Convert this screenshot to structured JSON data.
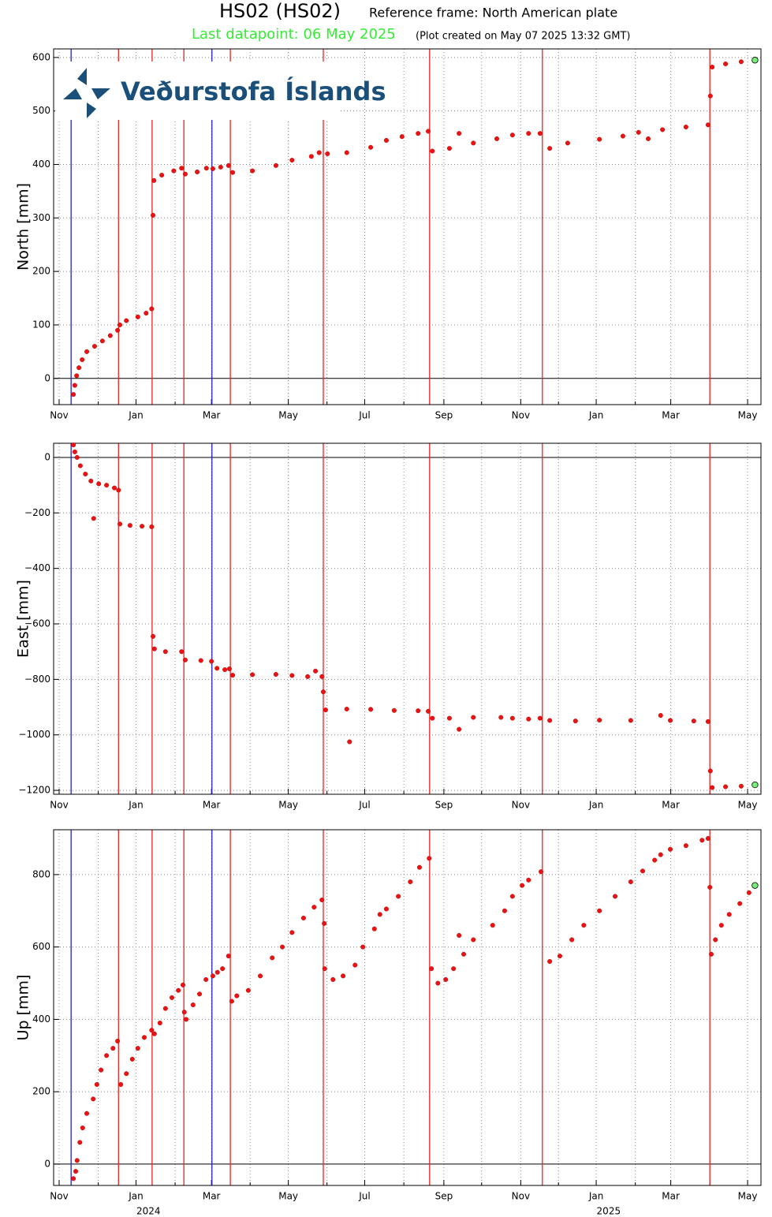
{
  "header": {
    "title": "HS02 (HS02)",
    "subtitle": "Reference frame: North American plate",
    "last_datapoint": "Last datapoint: 06 May 2025",
    "created": "(Plot created on May 07 2025 13:32 GMT)",
    "logo": "Veðurstofa Íslands"
  },
  "events": [
    {
      "x": 2023.859,
      "color": "#2222cc"
    },
    {
      "x": 2023.962,
      "color": "#ee2222"
    },
    {
      "x": 2024.035,
      "color": "#ee2222"
    },
    {
      "x": 2024.104,
      "color": "#ee2222"
    },
    {
      "x": 2024.165,
      "color": "#2222cc"
    },
    {
      "x": 2024.205,
      "color": "#ee2222"
    },
    {
      "x": 2024.407,
      "color": "#ee2222"
    },
    {
      "x": 2024.638,
      "color": "#ee2222"
    },
    {
      "x": 2024.883,
      "color": "#ee2222"
    },
    {
      "x": 2025.247,
      "color": "#ee2222"
    }
  ],
  "chart_data": [
    {
      "type": "scatter",
      "ylabel": "North [mm]",
      "color": "#ee1111",
      "last_point_color": "#77ee77",
      "grid": true,
      "xlim": [
        2023.821,
        2025.358
      ],
      "ylim": [
        -49,
        616
      ],
      "yticks": [
        0,
        100,
        200,
        300,
        400,
        500,
        600
      ],
      "xticks": [
        {
          "value": 2023.833,
          "label": "Nov"
        },
        {
          "value": 2024.0,
          "label": "Jan"
        },
        {
          "value": 2024.164,
          "label": "Mar"
        },
        {
          "value": 2024.331,
          "label": "May"
        },
        {
          "value": 2024.497,
          "label": "Jul"
        },
        {
          "value": 2024.669,
          "label": "Sep"
        },
        {
          "value": 2024.836,
          "label": "Nov"
        },
        {
          "value": 2025.0,
          "label": "Jan"
        },
        {
          "value": 2025.162,
          "label": "Mar"
        },
        {
          "value": 2025.329,
          "label": "May"
        }
      ],
      "xminorticks": [
        2023.918,
        2024.085,
        2024.248,
        2024.415,
        2024.582,
        2024.751,
        2024.918,
        2025.085,
        2025.247
      ],
      "x": [
        2023.864,
        2023.867,
        2023.871,
        2023.876,
        2023.883,
        2023.893,
        2023.91,
        2023.927,
        2023.944,
        2023.96,
        2023.965,
        2023.979,
        2024.004,
        2024.022,
        2024.034,
        2024.037,
        2024.039,
        2024.056,
        2024.082,
        2024.099,
        2024.107,
        2024.133,
        2024.153,
        2024.167,
        2024.184,
        2024.201,
        2024.21,
        2024.253,
        2024.304,
        2024.339,
        2024.381,
        2024.398,
        2024.416,
        2024.458,
        2024.51,
        2024.544,
        2024.578,
        2024.613,
        2024.635,
        2024.644,
        2024.681,
        2024.702,
        2024.733,
        2024.784,
        2024.818,
        2024.853,
        2024.878,
        2024.899,
        2024.938,
        2025.007,
        2025.058,
        2025.092,
        2025.113,
        2025.144,
        2025.195,
        2025.243,
        2025.248,
        2025.252,
        2025.281,
        2025.315,
        2025.345
      ],
      "values": [
        -30,
        -13,
        5,
        20,
        35,
        50,
        60,
        70,
        80,
        90,
        100,
        108,
        115,
        122,
        130,
        305,
        370,
        380,
        388,
        393,
        382,
        386,
        393,
        392,
        395,
        398,
        385,
        388,
        398,
        408,
        415,
        422,
        420,
        422,
        432,
        445,
        452,
        458,
        462,
        425,
        430,
        458,
        440,
        448,
        455,
        458,
        458,
        430,
        440,
        447,
        453,
        460,
        448,
        465,
        470,
        474,
        528,
        582,
        588,
        592,
        595
      ]
    },
    {
      "type": "scatter",
      "ylabel": "East [mm]",
      "color": "#ee1111",
      "last_point_color": "#77ee77",
      "grid": true,
      "xlim": [
        2023.821,
        2025.358
      ],
      "ylim": [
        -1214,
        51
      ],
      "yticks": [
        {
          "value": -1200,
          "label": "−1200"
        },
        {
          "value": -1000,
          "label": "−1000"
        },
        {
          "value": -800,
          "label": "−800"
        },
        {
          "value": -600,
          "label": "−600"
        },
        {
          "value": -400,
          "label": "−400"
        },
        {
          "value": -200,
          "label": "−200"
        },
        0
      ],
      "xticks": [
        {
          "value": 2023.833,
          "label": "Nov"
        },
        {
          "value": 2024.0,
          "label": "Jan"
        },
        {
          "value": 2024.164,
          "label": "Mar"
        },
        {
          "value": 2024.331,
          "label": "May"
        },
        {
          "value": 2024.497,
          "label": "Jul"
        },
        {
          "value": 2024.669,
          "label": "Sep"
        },
        {
          "value": 2024.836,
          "label": "Nov"
        },
        {
          "value": 2025.0,
          "label": "Jan"
        },
        {
          "value": 2025.162,
          "label": "Mar"
        },
        {
          "value": 2025.329,
          "label": "May"
        }
      ],
      "xminorticks": [
        2023.918,
        2024.085,
        2024.248,
        2024.415,
        2024.582,
        2024.751,
        2024.918,
        2025.085,
        2025.247
      ],
      "x": [
        2023.864,
        2023.867,
        2023.872,
        2023.879,
        2023.89,
        2023.902,
        2023.908,
        2023.919,
        2023.936,
        2023.953,
        2023.962,
        2023.965,
        2023.987,
        2024.013,
        2024.034,
        2024.037,
        2024.04,
        2024.064,
        2024.099,
        2024.107,
        2024.141,
        2024.164,
        2024.176,
        2024.193,
        2024.203,
        2024.21,
        2024.253,
        2024.304,
        2024.339,
        2024.373,
        2024.39,
        2024.404,
        2024.407,
        2024.412,
        2024.458,
        2024.464,
        2024.51,
        2024.561,
        2024.613,
        2024.635,
        2024.644,
        2024.681,
        2024.702,
        2024.733,
        2024.793,
        2024.818,
        2024.853,
        2024.878,
        2024.899,
        2024.955,
        2025.007,
        2025.075,
        2025.14,
        2025.161,
        2025.212,
        2025.243,
        2025.248,
        2025.252,
        2025.281,
        2025.315,
        2025.345
      ],
      "values": [
        45,
        20,
        0,
        -30,
        -60,
        -85,
        -220,
        -95,
        -100,
        -110,
        -118,
        -240,
        -245,
        -248,
        -250,
        -645,
        -690,
        -700,
        -700,
        -730,
        -732,
        -735,
        -760,
        -765,
        -762,
        -785,
        -783,
        -782,
        -786,
        -790,
        -770,
        -790,
        -845,
        -910,
        -907,
        -1025,
        -908,
        -912,
        -913,
        -915,
        -940,
        -940,
        -980,
        -937,
        -937,
        -940,
        -943,
        -940,
        -948,
        -950,
        -947,
        -948,
        -930,
        -948,
        -950,
        -952,
        -1130,
        -1190,
        -1187,
        -1185,
        -1180
      ]
    },
    {
      "type": "scatter",
      "ylabel": "Up [mm]",
      "color": "#ee1111",
      "last_point_color": "#77ee77",
      "grid": true,
      "xlim": [
        2023.821,
        2025.358
      ],
      "ylim": [
        -59,
        924
      ],
      "yticks": [
        0,
        200,
        400,
        600,
        800
      ],
      "xticks": [
        {
          "value": 2023.833,
          "label": "Nov"
        },
        {
          "value": 2024.0,
          "label": "Jan"
        },
        {
          "value": 2024.164,
          "label": "Mar"
        },
        {
          "value": 2024.331,
          "label": "May"
        },
        {
          "value": 2024.497,
          "label": "Jul"
        },
        {
          "value": 2024.669,
          "label": "Sep"
        },
        {
          "value": 2024.836,
          "label": "Nov"
        },
        {
          "value": 2025.0,
          "label": "Jan"
        },
        {
          "value": 2025.162,
          "label": "Mar"
        },
        {
          "value": 2025.329,
          "label": "May"
        }
      ],
      "xminorticks": [
        2023.918,
        2024.085,
        2024.248,
        2024.415,
        2024.582,
        2024.751,
        2024.918,
        2025.085,
        2025.247
      ],
      "year_labels": [
        {
          "value": 2024.027,
          "label": "2024"
        },
        {
          "value": 2025.027,
          "label": "2025"
        }
      ],
      "x": [
        2023.864,
        2023.869,
        2023.872,
        2023.878,
        2023.884,
        2023.893,
        2023.907,
        2023.915,
        2023.924,
        2023.936,
        2023.95,
        2023.96,
        2023.967,
        2023.979,
        2023.992,
        2024.004,
        2024.018,
        2024.034,
        2024.04,
        2024.052,
        2024.064,
        2024.078,
        2024.092,
        2024.102,
        2024.105,
        2024.109,
        2024.124,
        2024.138,
        2024.152,
        2024.167,
        2024.177,
        2024.188,
        2024.201,
        2024.208,
        2024.219,
        2024.244,
        2024.27,
        2024.296,
        2024.318,
        2024.339,
        2024.364,
        2024.387,
        2024.404,
        2024.409,
        2024.41,
        2024.428,
        2024.45,
        2024.476,
        2024.493,
        2024.518,
        2024.53,
        2024.544,
        2024.57,
        2024.596,
        2024.616,
        2024.637,
        2024.642,
        2024.656,
        2024.673,
        2024.69,
        2024.702,
        2024.712,
        2024.733,
        2024.775,
        2024.801,
        2024.818,
        2024.839,
        2024.853,
        2024.88,
        2024.899,
        2024.921,
        2024.947,
        2024.973,
        2025.007,
        2025.041,
        2025.075,
        2025.101,
        2025.127,
        2025.14,
        2025.161,
        2025.195,
        2025.23,
        2025.243,
        2025.247,
        2025.25,
        2025.259,
        2025.272,
        2025.289,
        2025.312,
        2025.332,
        2025.345
      ],
      "values": [
        -40,
        -20,
        10,
        60,
        100,
        140,
        180,
        220,
        260,
        300,
        320,
        340,
        220,
        250,
        290,
        320,
        350,
        370,
        360,
        390,
        430,
        460,
        480,
        495,
        420,
        400,
        440,
        470,
        510,
        520,
        530,
        540,
        575,
        450,
        465,
        480,
        520,
        570,
        600,
        640,
        680,
        710,
        730,
        665,
        540,
        510,
        520,
        550,
        600,
        650,
        690,
        705,
        740,
        780,
        820,
        845,
        540,
        500,
        510,
        540,
        632,
        580,
        620,
        660,
        700,
        740,
        770,
        785,
        808,
        560,
        575,
        620,
        660,
        700,
        740,
        780,
        810,
        840,
        855,
        870,
        880,
        895,
        900,
        765,
        580,
        620,
        660,
        690,
        720,
        750,
        770
      ]
    }
  ]
}
